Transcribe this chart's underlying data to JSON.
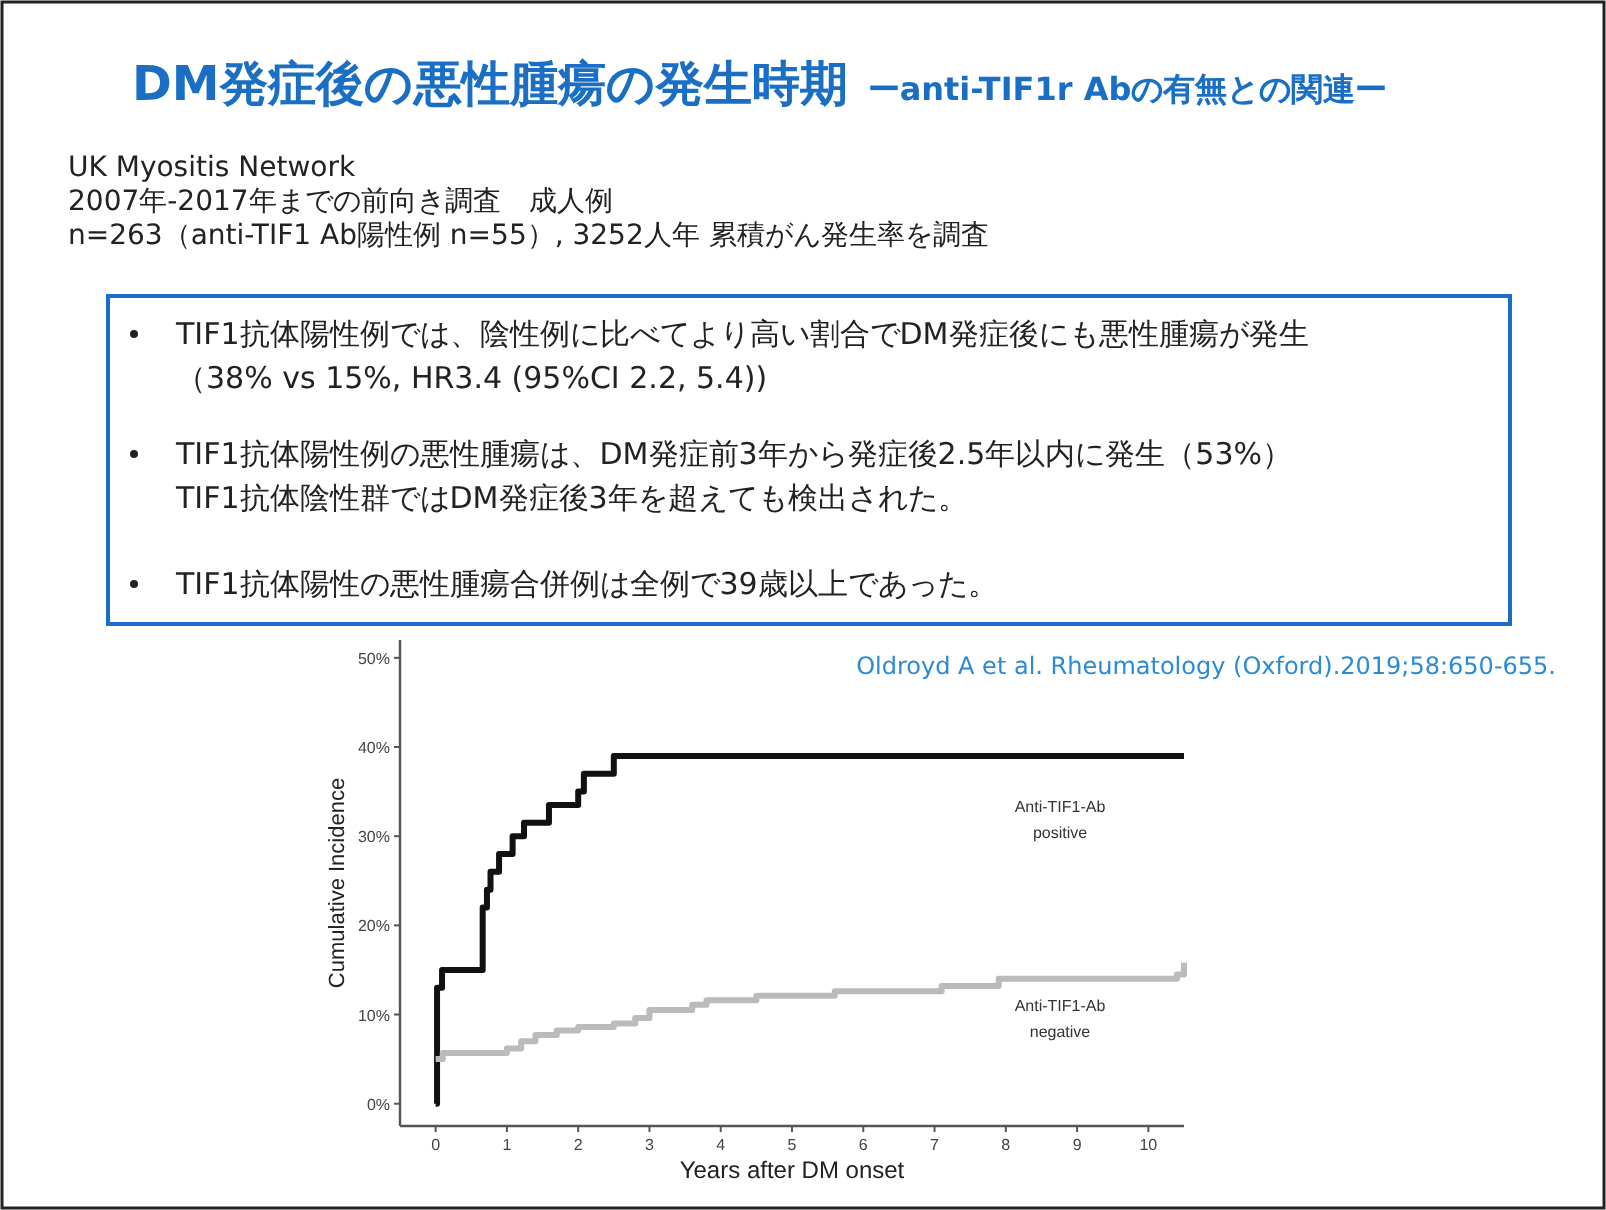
{
  "chart_data": {
    "type": "step",
    "title": "DM発症後の悪性腫瘍の発生時期",
    "subtitle": "ーanti-TIF1r Abの有無との関連ー",
    "xlabel": "Years after DM onset",
    "ylabel": "Cumulative Incidence",
    "annotations": [
      "UK Myositis Network",
      "2007年-2017年までの前向き調査　成人例",
      "n=263（anti-TIF1 Ab陽性例 n=55）, 3252人年 累積がん発生率を調査",
      "TIF1抗体陽性例では、陰性例に比べてより高い割合でDM発症後にも悪性腫瘍が発生",
      "（38% vs 15%, HR3.4 (95%CI 2.2, 5.4))",
      "TIF1抗体陽性例の悪性腫瘍は、DM発症前3年から発症後2.5年以内に発生（53%）",
      "TIF1抗体陰性群ではDM発症後3年を超えても検出された。",
      "TIF1抗体陽性の悪性腫瘍合併例は全例で39歳以上であった。",
      "Oldroyd A et al. Rheumatology (Oxford).2019;58:650-655."
    ],
    "series": [
      {
        "name": "Anti-TIF1-Ab positive",
        "color": "#111111",
        "x": [
          0,
          0.02,
          0.09,
          0.66,
          0.72,
          0.77,
          0.89,
          1.08,
          1.24,
          1.59,
          2.0,
          2.08,
          2.5,
          10.5
        ],
        "values": [
          0,
          13,
          15,
          22,
          24,
          26,
          28,
          30,
          31.5,
          33.5,
          35,
          37,
          39,
          39
        ]
      },
      {
        "name": "Anti-TIF1-Ab negative",
        "color": "#bbbbbb",
        "x": [
          0,
          0.1,
          1.0,
          1.2,
          1.4,
          1.7,
          2.0,
          2.5,
          2.8,
          3.0,
          3.6,
          3.8,
          4.5,
          5.6,
          7.1,
          7.9,
          10.4,
          10.5
        ],
        "values": [
          5,
          5.7,
          6.2,
          7,
          7.7,
          8.2,
          8.6,
          9,
          9.6,
          10.5,
          11.1,
          11.6,
          12.1,
          12.6,
          13.2,
          14,
          14.5,
          15.8
        ]
      }
    ],
    "xlim": [
      -0.5,
      10.5
    ],
    "xticks": [
      0,
      1,
      2,
      3,
      4,
      5,
      6,
      7,
      8,
      9,
      10
    ],
    "ylim": [
      -2.5,
      52
    ],
    "yticks": [
      {
        "value": 0,
        "label": "0%"
      },
      {
        "value": 10,
        "label": "10%"
      },
      {
        "value": 20,
        "label": "20%"
      },
      {
        "value": 30,
        "label": "30%"
      },
      {
        "value": 40,
        "label": "40%"
      },
      {
        "value": 50,
        "label": "50%"
      }
    ],
    "grid": false,
    "legend": false,
    "marker": "none",
    "line_style": "solid"
  }
}
